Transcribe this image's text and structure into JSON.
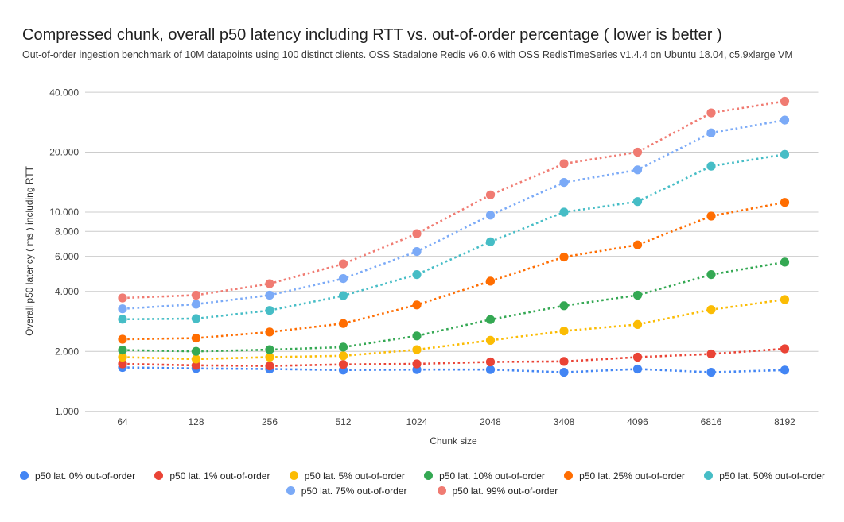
{
  "page": {
    "title": "Compressed chunk, overall p50 latency including RTT vs. out-of-order percentage ( lower is better )",
    "subtitle": "Out-of-order ingestion benchmark of 10M datapoints using 100 distinct clients. OSS Stadalone Redis v6.0.6 with OSS RedisTimeSeries v1.4.4 on Ubuntu 18.04, c5.9xlarge VM"
  },
  "chart_data": {
    "type": "line",
    "style": "dotted-lines-with-point-markers",
    "title": "Compressed chunk, overall p50 latency including RTT vs. out-of-order percentage ( lower is better )",
    "xlabel": "Chunk size",
    "ylabel": "Overall p50 latency ( ms ) including RTT",
    "y_scale": "log",
    "ylim": [
      1,
      40
    ],
    "grid": true,
    "legend_position": "bottom",
    "grid_color": "#cccccc",
    "tick_label_color": "#424242",
    "axis_title_color": "#333333",
    "categories": [
      "64",
      "128",
      "256",
      "512",
      "1024",
      "2048",
      "3408",
      "4096",
      "6816",
      "8192"
    ],
    "y_ticks": [
      {
        "value": 1,
        "label": "1.000"
      },
      {
        "value": 2,
        "label": "2.000"
      },
      {
        "value": 4,
        "label": "4.000"
      },
      {
        "value": 6,
        "label": "6.000"
      },
      {
        "value": 8,
        "label": "8.000"
      },
      {
        "value": 10,
        "label": "10.000"
      },
      {
        "value": 20,
        "label": "20.000"
      },
      {
        "value": 40,
        "label": "40.000"
      }
    ],
    "series": [
      {
        "name": "p50 lat. 0% out-of-order",
        "color": "#4285F4",
        "values": [
          1.66,
          1.64,
          1.63,
          1.61,
          1.62,
          1.62,
          1.57,
          1.63,
          1.57,
          1.61
        ]
      },
      {
        "name": "p50 lat. 1% out-of-order",
        "color": "#EA4335",
        "values": [
          1.73,
          1.7,
          1.69,
          1.72,
          1.73,
          1.77,
          1.78,
          1.87,
          1.94,
          2.06
        ]
      },
      {
        "name": "p50 lat. 5% out-of-order",
        "color": "#FBBC04",
        "values": [
          1.87,
          1.83,
          1.87,
          1.9,
          2.04,
          2.27,
          2.53,
          2.73,
          3.24,
          3.64
        ]
      },
      {
        "name": "p50 lat. 10% out-of-order",
        "color": "#34A853",
        "values": [
          2.03,
          2.0,
          2.04,
          2.1,
          2.39,
          2.89,
          3.39,
          3.83,
          4.86,
          5.61
        ]
      },
      {
        "name": "p50 lat. 25% out-of-order",
        "color": "#FF6D01",
        "values": [
          2.3,
          2.33,
          2.5,
          2.76,
          3.42,
          4.5,
          5.95,
          6.85,
          9.55,
          11.2
        ]
      },
      {
        "name": "p50 lat. 50% out-of-order",
        "color": "#46BDC6",
        "values": [
          2.9,
          2.92,
          3.21,
          3.81,
          4.86,
          7.1,
          10.0,
          11.3,
          17.0,
          19.5
        ]
      },
      {
        "name": "p50 lat. 75% out-of-order",
        "color": "#7BAAF7",
        "values": [
          3.27,
          3.45,
          3.83,
          4.64,
          6.34,
          9.66,
          14.1,
          16.3,
          25.0,
          29.0
        ]
      },
      {
        "name": "p50 lat. 99% out-of-order",
        "color": "#F07B72",
        "values": [
          3.71,
          3.83,
          4.37,
          5.5,
          7.8,
          12.2,
          17.5,
          20.0,
          31.5,
          36.0
        ]
      }
    ]
  }
}
